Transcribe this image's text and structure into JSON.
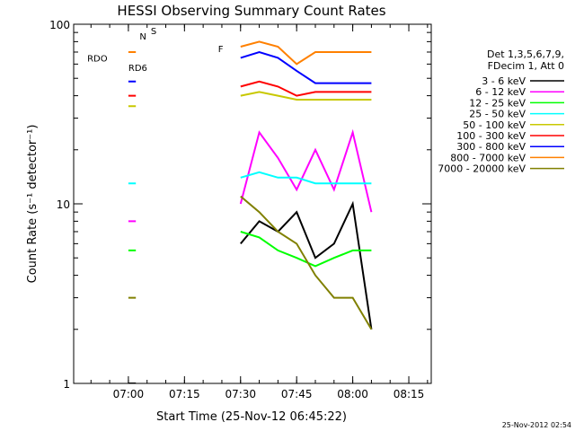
{
  "chart_data": {
    "type": "line",
    "title": "HESSI Observing Summary Count Rates",
    "xlabel": "Start Time (25-Nov-12 06:45:22)",
    "ylabel": "Count Rate (s⁻¹ detector⁻¹)",
    "y_scale": "log",
    "xlim": [
      "06:45:22",
      "08:21:00"
    ],
    "ylim": [
      1,
      100
    ],
    "x_ticks": [
      "07:00",
      "07:15",
      "07:30",
      "07:45",
      "08:00",
      "08:15"
    ],
    "y_ticks": [
      "1",
      "10",
      "100"
    ],
    "legend_header": [
      "Det 1,3,5,6,7,9,",
      "FDecim 1, Att 0"
    ],
    "series": [
      {
        "name": "3 - 6 keV",
        "color": "#000000",
        "x": [
          "07:00",
          "07:02",
          "07:27",
          "07:30",
          "07:35",
          "07:40",
          "07:45",
          "07:50",
          "07:55",
          "08:00",
          "08:05"
        ],
        "y": [
          1,
          1,
          null,
          6,
          8,
          7,
          9,
          5,
          6,
          10,
          2
        ]
      },
      {
        "name": "6 - 12 keV",
        "color": "#ff00ff",
        "x": [
          "07:00",
          "07:02",
          "07:27",
          "07:30",
          "07:35",
          "07:40",
          "07:45",
          "07:50",
          "07:55",
          "08:00",
          "08:05"
        ],
        "y": [
          8,
          8,
          null,
          10,
          25,
          18,
          12,
          20,
          12,
          25,
          9
        ]
      },
      {
        "name": "12 - 25 keV",
        "color": "#00ff00",
        "x": [
          "07:00",
          "07:02",
          "07:27",
          "07:30",
          "07:35",
          "07:40",
          "07:45",
          "07:50",
          "07:55",
          "08:00",
          "08:05"
        ],
        "y": [
          5.5,
          5.5,
          null,
          7,
          6.5,
          5.5,
          5,
          4.5,
          5,
          5.5,
          5.5
        ]
      },
      {
        "name": "25 - 50 keV",
        "color": "#00ffff",
        "x": [
          "07:00",
          "07:02",
          "07:27",
          "07:30",
          "07:35",
          "07:40",
          "07:45",
          "07:50",
          "07:55",
          "08:00",
          "08:05"
        ],
        "y": [
          13,
          13,
          null,
          14,
          15,
          14,
          14,
          13,
          13,
          13,
          13
        ]
      },
      {
        "name": "50 - 100 keV",
        "color": "#c8c800",
        "x": [
          "07:00",
          "07:02",
          "07:27",
          "07:30",
          "07:35",
          "07:40",
          "07:45",
          "07:50",
          "07:55",
          "08:00",
          "08:05"
        ],
        "y": [
          35,
          35,
          null,
          40,
          42,
          40,
          38,
          38,
          38,
          38,
          38
        ]
      },
      {
        "name": "100 - 300 keV",
        "color": "#ff0000",
        "x": [
          "07:00",
          "07:02",
          "07:27",
          "07:30",
          "07:35",
          "07:40",
          "07:45",
          "07:50",
          "07:55",
          "08:00",
          "08:05"
        ],
        "y": [
          40,
          40,
          null,
          45,
          48,
          45,
          40,
          42,
          42,
          42,
          42
        ]
      },
      {
        "name": "300 - 800 keV",
        "color": "#0000ff",
        "x": [
          "07:00",
          "07:02",
          "07:27",
          "07:30",
          "07:35",
          "07:40",
          "07:45",
          "07:50",
          "07:55",
          "08:00",
          "08:05"
        ],
        "y": [
          48,
          48,
          null,
          65,
          70,
          65,
          55,
          47,
          47,
          47,
          47
        ]
      },
      {
        "name": "800 - 7000 keV",
        "color": "#ff8000",
        "x": [
          "07:00",
          "07:02",
          "07:27",
          "07:30",
          "07:35",
          "07:40",
          "07:45",
          "07:50",
          "07:55",
          "08:00",
          "08:05"
        ],
        "y": [
          70,
          70,
          null,
          75,
          80,
          75,
          60,
          70,
          70,
          70,
          70
        ]
      },
      {
        "name": "7000 - 20000 keV",
        "color": "#808000",
        "x": [
          "07:00",
          "07:02",
          "07:27",
          "07:30",
          "07:35",
          "07:40",
          "07:45",
          "07:50",
          "07:55",
          "08:00",
          "08:05"
        ],
        "y": [
          3,
          3,
          null,
          11,
          9,
          7,
          6,
          4,
          3,
          3,
          2
        ]
      }
    ],
    "annotations": [
      {
        "text": "RDO",
        "color": "#b00000"
      },
      {
        "text": "RD6",
        "color": "#006400"
      },
      {
        "text": "S",
        "color": "#ff8000"
      },
      {
        "text": "N",
        "color": "#00c8c8"
      },
      {
        "text": "F",
        "color": "#ff0000"
      }
    ],
    "grid": false,
    "legend_position": "right"
  },
  "footer": {
    "timestamp": "25-Nov-2012 02:54"
  }
}
